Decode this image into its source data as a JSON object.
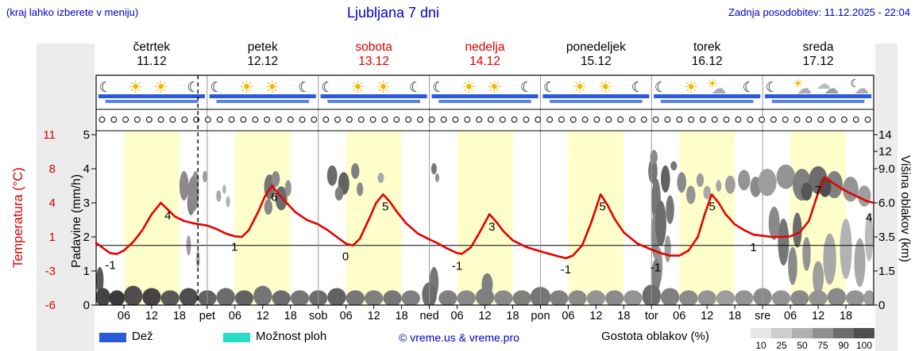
{
  "header": {
    "hint": "(kraj lahko izberete v meniju)",
    "title": "Ljubljana 7 dni",
    "updated": "Zadnja posodobitev: 11.12.2025 - 22:04"
  },
  "axis_labels": {
    "temp": "Temperatura (°C)",
    "precip": "Padavine (mm/h)",
    "cloud": "Višina oblakov (km)"
  },
  "days": [
    {
      "name": "četrtek",
      "date": "11.12",
      "red": false
    },
    {
      "name": "petek",
      "date": "12.12",
      "red": false
    },
    {
      "name": "sobota",
      "date": "13.12",
      "red": true
    },
    {
      "name": "nedelja",
      "date": "14.12",
      "red": true
    },
    {
      "name": "ponedeljek",
      "date": "15.12",
      "red": false
    },
    {
      "name": "torek",
      "date": "16.12",
      "red": false
    },
    {
      "name": "sreda",
      "date": "17.12",
      "red": false
    }
  ],
  "xaxis_labels": [
    [
      6,
      "06"
    ],
    [
      12,
      "12"
    ],
    [
      18,
      "18"
    ],
    [
      24,
      "pet"
    ],
    [
      30,
      "06"
    ],
    [
      36,
      "12"
    ],
    [
      42,
      "18"
    ],
    [
      48,
      "sob"
    ],
    [
      54,
      "06"
    ],
    [
      60,
      "12"
    ],
    [
      66,
      "18"
    ],
    [
      72,
      "ned"
    ],
    [
      78,
      "06"
    ],
    [
      84,
      "12"
    ],
    [
      90,
      "18"
    ],
    [
      96,
      "pon"
    ],
    [
      102,
      "06"
    ],
    [
      108,
      "12"
    ],
    [
      114,
      "18"
    ],
    [
      120,
      "tor"
    ],
    [
      126,
      "06"
    ],
    [
      132,
      "12"
    ],
    [
      138,
      "18"
    ],
    [
      144,
      "sre"
    ],
    [
      150,
      "06"
    ],
    [
      156,
      "12"
    ],
    [
      162,
      "18"
    ]
  ],
  "legend": {
    "rain": "Dež",
    "showers": "Možnost ploh",
    "copyright": "© vreme.us & vreme.pro",
    "cloud_density": "Gostota oblakov (%)",
    "density_ticks": [
      "10",
      "25",
      "50",
      "75",
      "90",
      "100"
    ],
    "density_colors": [
      "#e6e6e6",
      "#cccccc",
      "#b0b0b0",
      "#8f8f8f",
      "#6d6d6d",
      "#4d4d4d"
    ]
  },
  "colors": {
    "rain": "#2b59d8",
    "rain2": "#5b80e6",
    "showers": "#29dcc8",
    "daylight": "#ffffcc",
    "temp_line": "#e60000",
    "red_text": "#dd0000",
    "blue_text": "#0000cc"
  },
  "chart_data": {
    "type": "line",
    "title": "Ljubljana 7 dni",
    "x_range_hours": [
      0,
      168
    ],
    "now_line_hour": 22,
    "zero_line_temp": 0,
    "temp_axis_ticks": [
      "11",
      "8",
      "4",
      "1",
      "-3",
      "-6"
    ],
    "precip_axis_ticks": [
      "5",
      "4",
      "3",
      "2",
      "1",
      "0"
    ],
    "cloud_axis_ticks": [
      "14",
      "12",
      "9.0",
      "6.0",
      "3.5",
      "1.5",
      "0"
    ],
    "daylight_bands": [
      [
        6,
        18
      ],
      [
        30,
        42
      ],
      [
        54,
        66
      ],
      [
        78,
        90
      ],
      [
        102,
        114
      ],
      [
        126,
        138
      ],
      [
        150,
        162
      ]
    ],
    "temperature_series": [
      [
        0,
        0.3
      ],
      [
        1.5,
        -0.3
      ],
      [
        3,
        -0.9
      ],
      [
        4.5,
        -1
      ],
      [
        6,
        -0.6
      ],
      [
        8,
        0.4
      ],
      [
        10,
        1.6
      ],
      [
        12,
        3
      ],
      [
        14,
        4
      ],
      [
        15.5,
        3.4
      ],
      [
        17,
        2.8
      ],
      [
        19,
        2.4
      ],
      [
        21,
        2.2
      ],
      [
        24,
        2
      ],
      [
        26,
        1.7
      ],
      [
        28,
        1.3
      ],
      [
        30,
        1.05
      ],
      [
        31.5,
        1
      ],
      [
        33,
        1.6
      ],
      [
        35,
        3.2
      ],
      [
        36.5,
        4.8
      ],
      [
        38,
        6
      ],
      [
        39.5,
        5
      ],
      [
        41,
        4.1
      ],
      [
        43,
        3.2
      ],
      [
        45.5,
        2.5
      ],
      [
        48,
        2.1
      ],
      [
        50,
        1.6
      ],
      [
        52,
        1
      ],
      [
        54,
        0.2
      ],
      [
        55.5,
        0
      ],
      [
        57,
        0.8
      ],
      [
        59,
        2.6
      ],
      [
        60.5,
        4
      ],
      [
        62,
        5
      ],
      [
        63.5,
        4.1
      ],
      [
        65,
        3.2
      ],
      [
        67,
        2.2
      ],
      [
        69.5,
        1.3
      ],
      [
        72,
        0.7
      ],
      [
        74,
        0.2
      ],
      [
        76,
        -0.4
      ],
      [
        78,
        -0.9
      ],
      [
        79,
        -1
      ],
      [
        81,
        -0.2
      ],
      [
        83,
        1.5
      ],
      [
        85,
        3
      ],
      [
        86.5,
        2.3
      ],
      [
        88,
        1.5
      ],
      [
        90,
        0.6
      ],
      [
        93,
        -0.2
      ],
      [
        96,
        -0.7
      ],
      [
        98,
        -1
      ],
      [
        100,
        -1.3
      ],
      [
        101.5,
        -1.5
      ],
      [
        103,
        -1.2
      ],
      [
        105,
        0
      ],
      [
        107,
        2.3
      ],
      [
        109,
        5
      ],
      [
        110.5,
        3.8
      ],
      [
        112,
        2.6
      ],
      [
        114,
        1.4
      ],
      [
        117,
        0.2
      ],
      [
        120,
        -0.5
      ],
      [
        122,
        -0.9
      ],
      [
        124,
        -1.2
      ],
      [
        126,
        -1.2
      ],
      [
        128,
        -0.6
      ],
      [
        130,
        1
      ],
      [
        131.5,
        3
      ],
      [
        133,
        5
      ],
      [
        134.5,
        4
      ],
      [
        136,
        3
      ],
      [
        138,
        2.1
      ],
      [
        140,
        1.6
      ],
      [
        142,
        1.2
      ],
      [
        144,
        1.1
      ],
      [
        146,
        1
      ],
      [
        148,
        1
      ],
      [
        150,
        1.05
      ],
      [
        152,
        1.4
      ],
      [
        154,
        2.4
      ],
      [
        156,
        5.2
      ],
      [
        157.5,
        7
      ],
      [
        159,
        6.4
      ],
      [
        161,
        5.7
      ],
      [
        163,
        5.1
      ],
      [
        165,
        4.6
      ],
      [
        166.5,
        4.2
      ],
      [
        168,
        4
      ]
    ],
    "temperature_labels": [
      [
        3.1,
        -2.3,
        "-1"
      ],
      [
        15.5,
        2.9,
        "4"
      ],
      [
        29.9,
        -0.15,
        "1"
      ],
      [
        38.5,
        4.7,
        "6"
      ],
      [
        53.9,
        -1.3,
        "0"
      ],
      [
        62.5,
        3.7,
        "5"
      ],
      [
        78,
        -2.4,
        "-1"
      ],
      [
        85.5,
        1.9,
        "3"
      ],
      [
        101.5,
        -2.8,
        "-1"
      ],
      [
        109.4,
        3.7,
        "5"
      ],
      [
        120.9,
        -2.6,
        "-1"
      ],
      [
        133.1,
        3.7,
        "5"
      ],
      [
        142,
        -0.2,
        "1"
      ],
      [
        156,
        5.5,
        "7"
      ],
      [
        167,
        2.7,
        "4"
      ]
    ],
    "weather_icons": [
      [
        2,
        "moon"
      ],
      [
        8.5,
        "sun"
      ],
      [
        14,
        "sun"
      ],
      [
        21,
        "moon"
      ],
      [
        26,
        "moon"
      ],
      [
        32.5,
        "sun"
      ],
      [
        38,
        "sun"
      ],
      [
        45,
        "moon"
      ],
      [
        50,
        "moon"
      ],
      [
        56.5,
        "sun"
      ],
      [
        62,
        "sun"
      ],
      [
        69,
        "moon"
      ],
      [
        74,
        "moon"
      ],
      [
        80.5,
        "sun"
      ],
      [
        86,
        "sun"
      ],
      [
        93,
        "moon"
      ],
      [
        98,
        "moon"
      ],
      [
        104.5,
        "sun"
      ],
      [
        110,
        "sun"
      ],
      [
        117,
        "moon"
      ],
      [
        122,
        "moon"
      ],
      [
        128.5,
        "sun"
      ],
      [
        134,
        "cloud-sun"
      ],
      [
        141,
        "moon"
      ],
      [
        146,
        "moon"
      ],
      [
        152.5,
        "cloud-sun"
      ],
      [
        158,
        "cloud"
      ],
      [
        165,
        "cloud-moon"
      ]
    ],
    "rain_bars_row1": [
      [
        0.5,
        23.5
      ],
      [
        24.5,
        47.5
      ],
      [
        48.5,
        71.5
      ],
      [
        72.5,
        95.5
      ],
      [
        96.5,
        119.5
      ],
      [
        120.5,
        143.5
      ],
      [
        144.5,
        167.5
      ]
    ],
    "rain_bars_row2": [
      [
        2,
        22
      ],
      [
        26,
        46
      ],
      [
        50,
        70
      ],
      [
        74,
        94
      ],
      [
        98,
        118
      ],
      [
        122,
        142
      ],
      [
        146,
        166
      ]
    ],
    "prob_circles_count": 66,
    "clouds": [
      [
        19,
        7.5,
        1,
        1.3,
        0.45
      ],
      [
        20.5,
        6,
        0.8,
        1,
        0.5
      ],
      [
        21.5,
        8,
        0.7,
        0.8,
        0.4
      ],
      [
        21,
        6.8,
        1.2,
        1.5,
        0.45
      ],
      [
        23.5,
        8.3,
        0.5,
        0.5,
        0.35
      ],
      [
        20,
        3,
        0.5,
        0.6,
        0.35
      ],
      [
        22,
        2.2,
        0.4,
        0.5,
        0.3
      ],
      [
        26.5,
        6.6,
        0.55,
        0.5,
        0.3
      ],
      [
        28.5,
        6.1,
        0.45,
        0.45,
        0.25
      ],
      [
        27.7,
        7.2,
        0.4,
        0.4,
        0.25
      ],
      [
        37.5,
        7.4,
        1.2,
        1.1,
        0.55
      ],
      [
        40,
        6.4,
        1.3,
        1,
        0.6
      ],
      [
        38.8,
        8.1,
        0.9,
        0.7,
        0.45
      ],
      [
        41.5,
        7.3,
        0.7,
        0.7,
        0.4
      ],
      [
        37.2,
        5.7,
        0.9,
        0.6,
        0.45
      ],
      [
        51,
        8.4,
        1.1,
        1,
        0.6
      ],
      [
        53.5,
        7.7,
        1.2,
        1,
        0.65
      ],
      [
        56,
        8.8,
        0.9,
        0.85,
        0.5
      ],
      [
        52.5,
        6.8,
        0.9,
        0.6,
        0.5
      ],
      [
        57,
        7.2,
        0.7,
        0.6,
        0.45
      ],
      [
        61.5,
        8.2,
        0.7,
        0.45,
        0.3
      ],
      [
        73,
        9,
        0.6,
        0.65,
        0.55
      ],
      [
        73.7,
        8.2,
        0.45,
        0.4,
        0.4
      ],
      [
        120.3,
        8.8,
        1,
        1.4,
        0.55
      ],
      [
        120.5,
        11,
        0.8,
        1.2,
        0.45
      ],
      [
        121,
        6.2,
        1,
        1.8,
        0.55
      ],
      [
        120.8,
        3.6,
        0.9,
        1.5,
        0.45
      ],
      [
        121.5,
        1.8,
        0.9,
        1,
        0.4
      ],
      [
        122,
        4.5,
        1.2,
        1.6,
        0.6
      ],
      [
        123,
        8.1,
        1,
        1.3,
        0.65
      ],
      [
        124,
        5.5,
        0.9,
        1.1,
        0.55
      ],
      [
        123.5,
        2.8,
        0.7,
        0.8,
        0.35
      ],
      [
        124.8,
        9.5,
        0.7,
        0.7,
        0.55
      ],
      [
        126.5,
        7.8,
        1,
        0.9,
        0.45
      ],
      [
        128.5,
        6.7,
        1,
        0.8,
        0.4
      ],
      [
        130.5,
        8,
        0.8,
        0.6,
        0.35
      ],
      [
        132,
        6.9,
        0.8,
        0.6,
        0.3
      ],
      [
        134.5,
        7.5,
        0.6,
        0.5,
        0.3
      ],
      [
        137,
        7.6,
        1.1,
        0.8,
        0.35
      ],
      [
        140,
        8,
        1.3,
        0.9,
        0.4
      ],
      [
        142.5,
        7.4,
        1.2,
        0.9,
        0.45
      ],
      [
        145,
        7.8,
        2,
        1.2,
        0.35
      ],
      [
        149,
        8.3,
        2,
        1.2,
        0.4
      ],
      [
        152.5,
        7.6,
        2,
        1.4,
        0.5
      ],
      [
        156,
        8,
        2,
        1.3,
        0.6
      ],
      [
        159.5,
        7.6,
        1.8,
        1.2,
        0.5
      ],
      [
        163,
        7.2,
        1.7,
        1.1,
        0.4
      ],
      [
        166,
        6.6,
        1.4,
        0.9,
        0.35
      ],
      [
        153.5,
        7,
        1.2,
        0.8,
        0.7
      ],
      [
        157.5,
        7.4,
        1.3,
        0.9,
        0.75
      ],
      [
        146.5,
        4.5,
        1.2,
        1.2,
        0.45
      ],
      [
        148.5,
        3.2,
        1.2,
        1.5,
        0.55
      ],
      [
        150.5,
        1.8,
        1,
        1,
        0.45
      ],
      [
        151.5,
        4,
        1,
        1.2,
        0.6
      ],
      [
        153.5,
        2.5,
        0.9,
        1,
        0.4
      ],
      [
        156,
        1.2,
        1.2,
        0.8,
        0.35
      ],
      [
        158.5,
        2.2,
        1.4,
        1.4,
        0.3
      ],
      [
        162,
        2.8,
        1.3,
        1.8,
        0.25
      ],
      [
        165,
        2,
        1.2,
        1.3,
        0.3
      ],
      [
        167,
        3.5,
        0.9,
        1.6,
        0.2
      ],
      [
        0.8,
        1.1,
        0.8,
        0.6,
        0.7
      ],
      [
        73,
        1,
        1,
        0.7,
        0.55
      ],
      [
        84.5,
        0.9,
        1.2,
        0.5,
        0.5
      ],
      [
        121,
        1.3,
        1,
        0.8,
        0.5
      ],
      [
        1.5,
        0.35,
        1.6,
        0.4,
        0.8
      ],
      [
        4.5,
        0.3,
        1.7,
        0.35,
        0.85
      ],
      [
        8,
        0.4,
        2,
        0.45,
        0.75
      ],
      [
        12,
        0.35,
        2,
        0.4,
        0.8
      ],
      [
        16,
        0.3,
        2,
        0.35,
        0.7
      ],
      [
        20,
        0.35,
        2,
        0.4,
        0.75
      ],
      [
        24,
        0.3,
        2,
        0.35,
        0.65
      ],
      [
        28,
        0.35,
        2,
        0.4,
        0.6
      ],
      [
        32,
        0.3,
        2,
        0.35,
        0.65
      ],
      [
        36,
        0.4,
        2,
        0.45,
        0.55
      ],
      [
        40,
        0.3,
        2,
        0.35,
        0.6
      ],
      [
        44,
        0.3,
        2,
        0.35,
        0.55
      ],
      [
        48,
        0.3,
        2,
        0.35,
        0.6
      ],
      [
        52,
        0.35,
        2,
        0.4,
        0.65
      ],
      [
        56,
        0.3,
        2,
        0.35,
        0.55
      ],
      [
        60,
        0.3,
        2,
        0.35,
        0.5
      ],
      [
        64,
        0.3,
        2,
        0.35,
        0.55
      ],
      [
        68,
        0.3,
        2,
        0.35,
        0.5
      ],
      [
        72,
        0.45,
        1.6,
        0.55,
        0.6
      ],
      [
        76,
        0.3,
        2,
        0.35,
        0.5
      ],
      [
        80,
        0.3,
        2,
        0.35,
        0.45
      ],
      [
        84,
        0.35,
        2,
        0.4,
        0.5
      ],
      [
        88,
        0.3,
        2,
        0.35,
        0.45
      ],
      [
        92,
        0.3,
        2,
        0.35,
        0.5
      ],
      [
        96,
        0.35,
        2.2,
        0.45,
        0.55
      ],
      [
        100,
        0.3,
        2,
        0.35,
        0.5
      ],
      [
        104,
        0.3,
        2,
        0.35,
        0.45
      ],
      [
        108,
        0.3,
        2,
        0.35,
        0.4
      ],
      [
        112,
        0.3,
        2,
        0.35,
        0.45
      ],
      [
        116,
        0.3,
        2,
        0.35,
        0.4
      ],
      [
        120,
        0.4,
        2,
        0.5,
        0.6
      ],
      [
        124,
        0.35,
        2,
        0.4,
        0.5
      ],
      [
        128,
        0.3,
        2,
        0.35,
        0.45
      ],
      [
        132,
        0.3,
        2,
        0.35,
        0.4
      ],
      [
        136,
        0.3,
        2,
        0.35,
        0.35
      ],
      [
        140,
        0.3,
        2,
        0.35,
        0.4
      ],
      [
        144,
        0.35,
        2,
        0.4,
        0.45
      ],
      [
        148,
        0.3,
        2,
        0.35,
        0.4
      ],
      [
        152,
        0.3,
        2,
        0.35,
        0.45
      ],
      [
        156,
        0.3,
        2,
        0.35,
        0.4
      ],
      [
        160,
        0.35,
        2,
        0.4,
        0.45
      ],
      [
        164,
        0.3,
        2,
        0.35,
        0.4
      ],
      [
        167,
        0.3,
        1.2,
        0.35,
        0.35
      ]
    ]
  }
}
